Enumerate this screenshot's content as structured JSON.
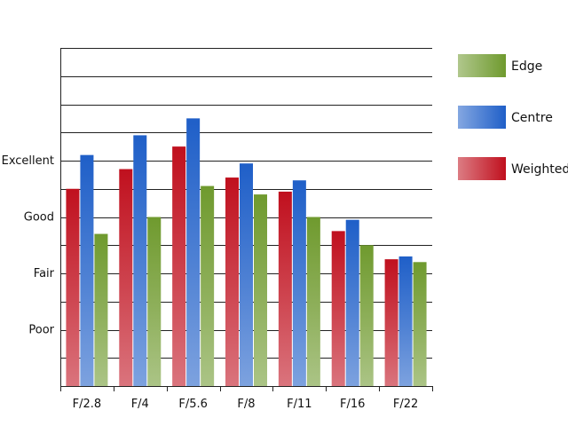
{
  "chart_data": {
    "type": "bar",
    "categories": [
      "F/2.8",
      "F/4",
      "F/5.6",
      "F/8",
      "F/11",
      "F/16",
      "F/22"
    ],
    "series": [
      {
        "name": "Weighted",
        "color": "#c0101e",
        "values": [
          3.5,
          3.85,
          4.25,
          3.7,
          3.45,
          2.75,
          2.25
        ]
      },
      {
        "name": "Centre",
        "color": "#1f5fc8",
        "values": [
          4.1,
          4.45,
          4.75,
          3.95,
          3.65,
          2.95,
          2.3
        ]
      },
      {
        "name": "Edge",
        "color": "#6f9a2e",
        "values": [
          2.7,
          3.0,
          3.55,
          3.4,
          3.0,
          2.5,
          2.2
        ]
      }
    ],
    "ylim": [
      0,
      6
    ],
    "yticks": [
      {
        "value": 1,
        "label": "Poor"
      },
      {
        "value": 2,
        "label": "Fair"
      },
      {
        "value": 3,
        "label": "Good"
      },
      {
        "value": 4,
        "label": "Excellent"
      }
    ],
    "grid": true,
    "legend": {
      "position": "right",
      "order": [
        "Edge",
        "Centre",
        "Weighted"
      ]
    }
  }
}
